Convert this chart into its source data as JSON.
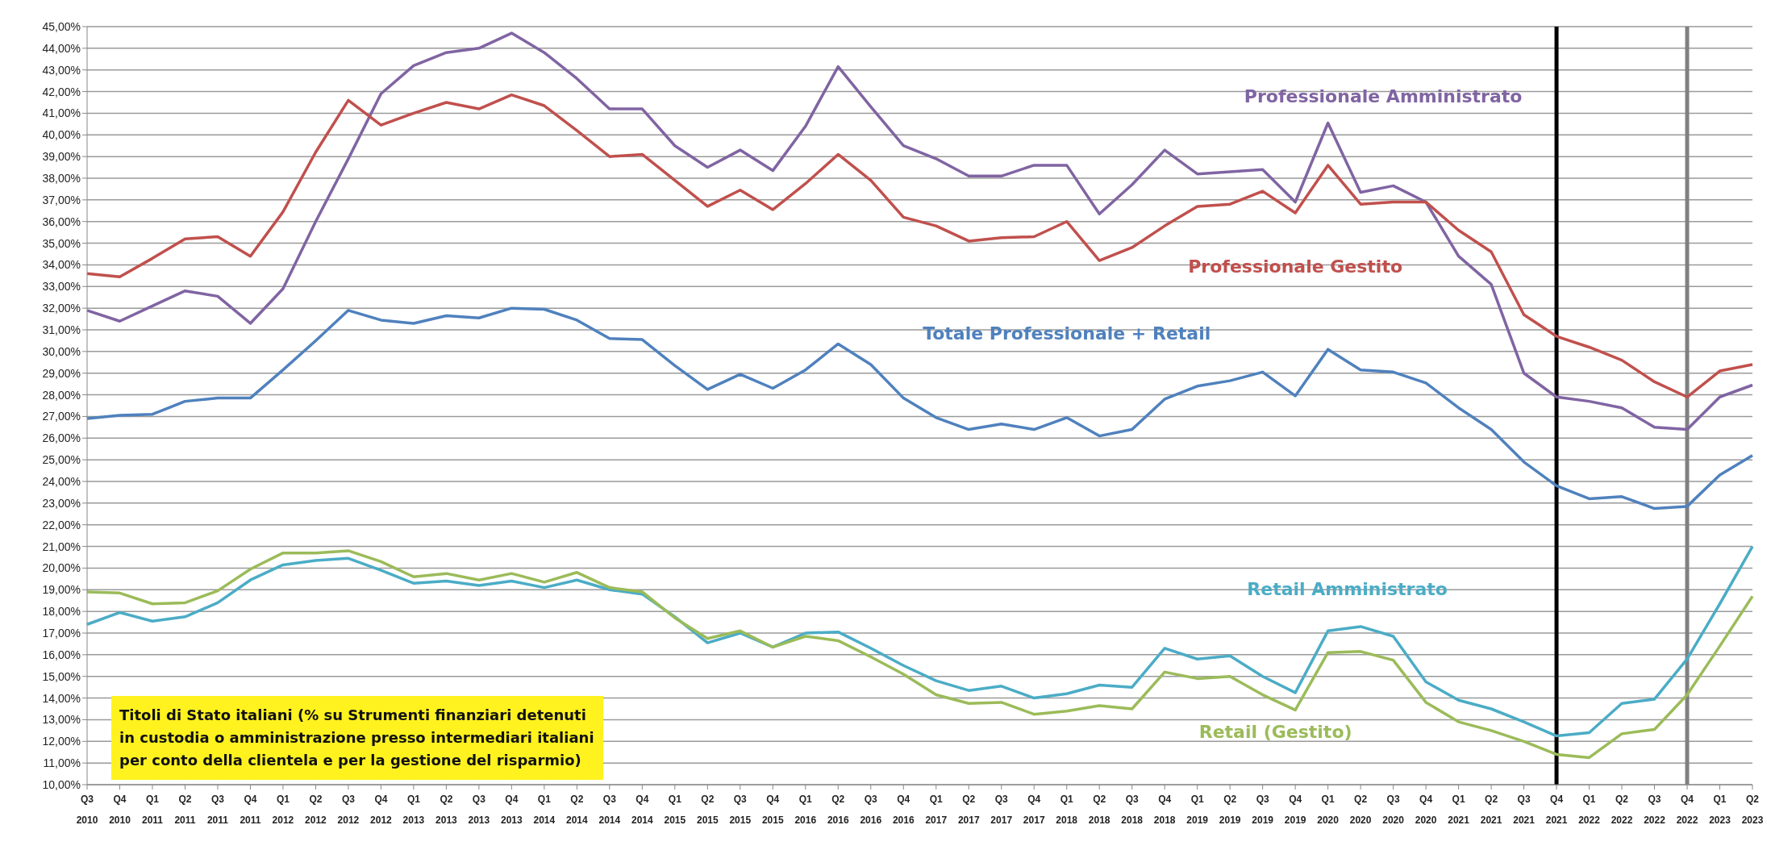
{
  "chart_data": {
    "type": "line",
    "categories": [
      "Q3 2010",
      "Q4 2010",
      "Q1 2011",
      "Q2 2011",
      "Q3 2011",
      "Q4 2011",
      "Q1 2012",
      "Q2 2012",
      "Q3 2012",
      "Q4 2012",
      "Q1 2013",
      "Q2 2013",
      "Q3 2013",
      "Q4 2013",
      "Q1 2014",
      "Q2 2014",
      "Q3 2014",
      "Q4 2014",
      "Q1 2015",
      "Q2 2015",
      "Q3 2015",
      "Q4 2015",
      "Q1 2016",
      "Q2 2016",
      "Q3 2016",
      "Q4 2016",
      "Q1 2017",
      "Q2 2017",
      "Q3 2017",
      "Q4 2017",
      "Q1 2018",
      "Q2 2018",
      "Q3 2018",
      "Q4 2018",
      "Q1 2019",
      "Q2 2019",
      "Q3 2019",
      "Q4 2019",
      "Q1 2020",
      "Q2 2020",
      "Q3 2020",
      "Q4 2020",
      "Q1 2021",
      "Q2 2021",
      "Q3 2021",
      "Q4 2021",
      "Q1 2022",
      "Q2 2022",
      "Q3 2022",
      "Q4 2022",
      "Q1 2023",
      "Q2 2023"
    ],
    "series": [
      {
        "name": "Professionale Amministrato",
        "color": "#8064a2",
        "values": [
          31.9,
          31.4,
          32.1,
          32.8,
          32.55,
          31.3,
          32.9,
          36.0,
          38.9,
          41.9,
          43.2,
          43.8,
          44.0,
          44.7,
          43.8,
          42.6,
          41.2,
          41.2,
          39.5,
          38.5,
          39.3,
          38.35,
          40.4,
          43.15,
          41.3,
          39.5,
          38.9,
          38.1,
          38.1,
          38.6,
          38.6,
          36.35,
          37.7,
          39.3,
          38.2,
          38.3,
          38.4,
          36.9,
          40.55,
          37.35,
          37.65,
          36.9,
          34.4,
          33.1,
          29.0,
          27.9,
          27.7,
          27.4,
          26.5,
          26.4,
          27.9,
          28.45
        ]
      },
      {
        "name": "Professionale Gestito",
        "color": "#c0504d",
        "values": [
          33.6,
          33.45,
          34.3,
          35.2,
          35.3,
          34.4,
          36.45,
          39.2,
          41.6,
          40.45,
          41.0,
          41.5,
          41.2,
          41.85,
          41.35,
          40.2,
          39.0,
          39.1,
          37.9,
          36.7,
          37.45,
          36.55,
          37.75,
          39.1,
          37.9,
          36.2,
          35.8,
          35.1,
          35.25,
          35.3,
          36.0,
          34.2,
          34.8,
          35.8,
          36.7,
          36.8,
          37.4,
          36.4,
          38.6,
          36.8,
          36.9,
          36.9,
          35.6,
          34.6,
          31.7,
          30.7,
          30.2,
          29.6,
          28.6,
          27.9,
          29.1,
          29.4
        ]
      },
      {
        "name": "Totale Professionale + Retail",
        "color": "#4f81bd",
        "values": [
          26.9,
          27.05,
          27.1,
          27.7,
          27.85,
          27.85,
          29.15,
          30.5,
          31.9,
          31.45,
          31.3,
          31.65,
          31.55,
          32.0,
          31.95,
          31.45,
          30.6,
          30.55,
          29.35,
          28.25,
          28.95,
          28.3,
          29.15,
          30.35,
          29.4,
          27.85,
          26.95,
          26.4,
          26.65,
          26.4,
          26.95,
          26.1,
          26.4,
          27.8,
          28.4,
          28.65,
          29.05,
          27.95,
          30.1,
          29.15,
          29.05,
          28.55,
          27.4,
          26.4,
          24.9,
          23.8,
          23.2,
          23.3,
          22.75,
          22.85,
          24.3,
          25.2
        ]
      },
      {
        "name": "Retail Amministrato",
        "color": "#4bacc6",
        "values": [
          17.4,
          17.95,
          17.55,
          17.75,
          18.4,
          19.45,
          20.15,
          20.35,
          20.45,
          19.9,
          19.3,
          19.4,
          19.2,
          19.4,
          19.1,
          19.45,
          19.0,
          18.8,
          17.75,
          16.55,
          17.0,
          16.35,
          17.0,
          17.05,
          16.3,
          15.5,
          14.8,
          14.35,
          14.55,
          14.0,
          14.2,
          14.6,
          14.5,
          16.3,
          15.8,
          15.95,
          15.0,
          14.25,
          17.1,
          17.3,
          16.85,
          14.75,
          13.9,
          13.5,
          12.9,
          12.25,
          12.4,
          13.75,
          13.95,
          15.8,
          18.35,
          21.0
        ]
      },
      {
        "name": "Retail (Gestito)",
        "color": "#9bbb59",
        "values": [
          18.9,
          18.85,
          18.35,
          18.4,
          18.95,
          19.95,
          20.7,
          20.7,
          20.8,
          20.3,
          19.6,
          19.75,
          19.45,
          19.75,
          19.35,
          19.8,
          19.1,
          18.9,
          17.7,
          16.75,
          17.1,
          16.35,
          16.85,
          16.65,
          15.9,
          15.1,
          14.15,
          13.75,
          13.8,
          13.25,
          13.4,
          13.65,
          13.5,
          15.2,
          14.9,
          15.0,
          14.15,
          13.45,
          16.1,
          16.15,
          15.75,
          13.8,
          12.9,
          12.5,
          12.0,
          11.4,
          11.25,
          12.35,
          12.55,
          14.15,
          16.4,
          18.7
        ]
      }
    ],
    "ylim": [
      10,
      45
    ],
    "yticks": [
      {
        "value": 10,
        "label": "10,00%"
      },
      {
        "value": 11,
        "label": "11,00%"
      },
      {
        "value": 12,
        "label": "12,00%"
      },
      {
        "value": 13,
        "label": "13,00%"
      },
      {
        "value": 14,
        "label": "14,00%"
      },
      {
        "value": 15,
        "label": "15,00%"
      },
      {
        "value": 16,
        "label": "16,00%"
      },
      {
        "value": 17,
        "label": "17,00%"
      },
      {
        "value": 18,
        "label": "18,00%"
      },
      {
        "value": 19,
        "label": "19,00%"
      },
      {
        "value": 20,
        "label": "20,00%"
      },
      {
        "value": 21,
        "label": "21,00%"
      },
      {
        "value": 22,
        "label": "22,00%"
      },
      {
        "value": 23,
        "label": "23,00%"
      },
      {
        "value": 24,
        "label": "24,00%"
      },
      {
        "value": 25,
        "label": "25,00%"
      },
      {
        "value": 26,
        "label": "26,00%"
      },
      {
        "value": 27,
        "label": "27,00%"
      },
      {
        "value": 28,
        "label": "28,00%"
      },
      {
        "value": 29,
        "label": "29,00%"
      },
      {
        "value": 30,
        "label": "30,00%"
      },
      {
        "value": 31,
        "label": "31,00%"
      },
      {
        "value": 32,
        "label": "32,00%"
      },
      {
        "value": 33,
        "label": "33,00%"
      },
      {
        "value": 34,
        "label": "34,00%"
      },
      {
        "value": 35,
        "label": "35,00%"
      },
      {
        "value": 36,
        "label": "36,00%"
      },
      {
        "value": 37,
        "label": "37,00%"
      },
      {
        "value": 38,
        "label": "38,00%"
      },
      {
        "value": 39,
        "label": "39,00%"
      },
      {
        "value": 40,
        "label": "40,00%"
      },
      {
        "value": 41,
        "label": "41,00%"
      },
      {
        "value": 42,
        "label": "42,00%"
      },
      {
        "value": 43,
        "label": "43,00%"
      },
      {
        "value": 44,
        "label": "44,00%"
      },
      {
        "value": 45,
        "label": "45,00%"
      }
    ],
    "grid": "y",
    "legend": false,
    "marker": "none",
    "ref_lines": [
      {
        "axis": "x",
        "value": "Q4 2021",
        "color": "#000000"
      },
      {
        "axis": "x",
        "value": "Q4 2022",
        "color": "#808080"
      }
    ],
    "annotations": [
      "Titoli di Stato italiani (% su Strumenti finanziari detenuti in custodia o amministrazione presso intermediari italiani per conto della clientela e per la gestione del risparmio)"
    ]
  }
}
